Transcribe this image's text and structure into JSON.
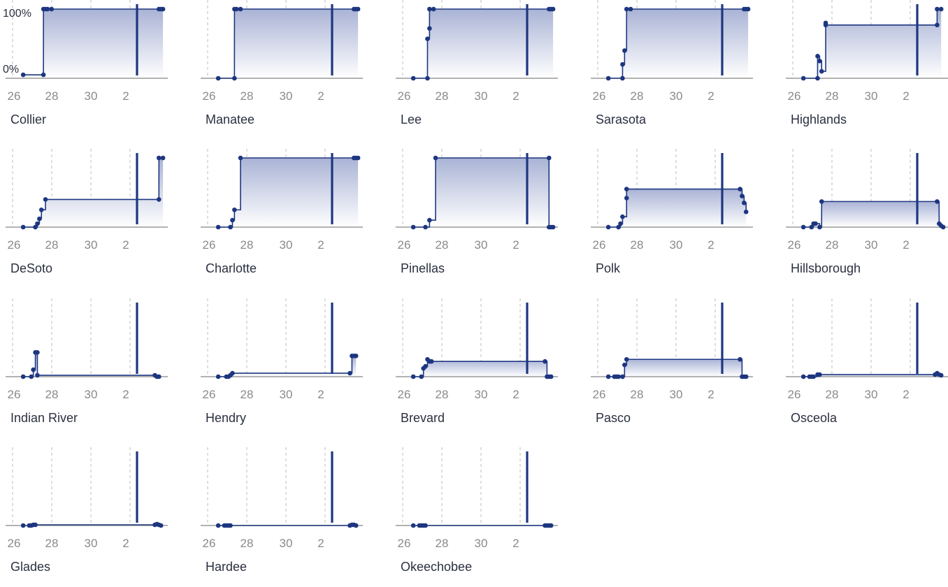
{
  "chart_data": {
    "type": "line",
    "shared": {
      "x_tick_labels": [
        "26",
        "28",
        "30",
        "2"
      ],
      "y_tick_labels": [
        "100%",
        "0%"
      ],
      "ylim": [
        0,
        100
      ],
      "x_grid": "dashed vertical",
      "marker_line": "solid vertical line near end of range"
    },
    "colors": {
      "line": "#1d3680",
      "fill_top": "#a9b3d5",
      "fill_bottom": "#ffffff",
      "axis": "#999999",
      "grid": "#c8c8c8",
      "tick_text": "#8a8a8a",
      "title_text": "#2b3040"
    },
    "panels": [
      {
        "title": "Collier",
        "points": [
          [
            25.8,
            5
          ],
          [
            26.8,
            5
          ],
          [
            26.8,
            100
          ],
          [
            26.9,
            100
          ],
          [
            27.0,
            100
          ],
          [
            27.2,
            100
          ],
          [
            32.5,
            100
          ],
          [
            32.6,
            100
          ],
          [
            32.7,
            100
          ]
        ]
      },
      {
        "title": "Manatee",
        "points": [
          [
            25.8,
            0
          ],
          [
            26.6,
            0
          ],
          [
            26.6,
            100
          ],
          [
            26.7,
            100
          ],
          [
            26.9,
            100
          ],
          [
            32.5,
            100
          ],
          [
            32.6,
            100
          ],
          [
            32.7,
            100
          ]
        ]
      },
      {
        "title": "Lee",
        "points": [
          [
            25.8,
            0
          ],
          [
            26.5,
            0
          ],
          [
            26.5,
            57
          ],
          [
            26.6,
            72
          ],
          [
            26.6,
            100
          ],
          [
            26.8,
            100
          ],
          [
            32.5,
            100
          ],
          [
            32.6,
            100
          ],
          [
            32.7,
            100
          ]
        ]
      },
      {
        "title": "Sarasota",
        "points": [
          [
            25.8,
            0
          ],
          [
            26.5,
            0
          ],
          [
            26.5,
            20
          ],
          [
            26.6,
            40
          ],
          [
            26.7,
            100
          ],
          [
            26.9,
            100
          ],
          [
            32.5,
            100
          ],
          [
            32.6,
            100
          ],
          [
            32.7,
            100
          ]
        ]
      },
      {
        "title": "Highlands",
        "points": [
          [
            25.8,
            0
          ],
          [
            26.5,
            0
          ],
          [
            26.5,
            32
          ],
          [
            26.6,
            25
          ],
          [
            26.7,
            10
          ],
          [
            26.9,
            80
          ],
          [
            26.9,
            77
          ],
          [
            32.4,
            77
          ],
          [
            32.4,
            100
          ],
          [
            32.6,
            100
          ]
        ]
      },
      {
        "title": "DeSoto",
        "points": [
          [
            25.8,
            0
          ],
          [
            26.4,
            0
          ],
          [
            26.5,
            5
          ],
          [
            26.6,
            12
          ],
          [
            26.7,
            25
          ],
          [
            26.9,
            40
          ],
          [
            32.5,
            40
          ],
          [
            32.5,
            100
          ],
          [
            32.7,
            100
          ]
        ]
      },
      {
        "title": "Charlotte",
        "points": [
          [
            25.8,
            0
          ],
          [
            26.4,
            0
          ],
          [
            26.5,
            10
          ],
          [
            26.6,
            25
          ],
          [
            26.9,
            100
          ],
          [
            32.5,
            100
          ],
          [
            32.6,
            100
          ],
          [
            32.7,
            100
          ]
        ]
      },
      {
        "title": "Pinellas",
        "points": [
          [
            25.8,
            0
          ],
          [
            26.4,
            0
          ],
          [
            26.6,
            10
          ],
          [
            26.9,
            100
          ],
          [
            32.5,
            100
          ],
          [
            32.5,
            0
          ],
          [
            32.6,
            0
          ],
          [
            32.7,
            0
          ]
        ]
      },
      {
        "title": "Polk",
        "points": [
          [
            25.8,
            0
          ],
          [
            26.3,
            0
          ],
          [
            26.4,
            5
          ],
          [
            26.5,
            15
          ],
          [
            26.7,
            42
          ],
          [
            26.7,
            55
          ],
          [
            32.3,
            55
          ],
          [
            32.4,
            45
          ],
          [
            32.5,
            35
          ],
          [
            32.6,
            22
          ]
        ]
      },
      {
        "title": "Hillsborough",
        "points": [
          [
            25.8,
            0
          ],
          [
            26.2,
            0
          ],
          [
            26.3,
            5
          ],
          [
            26.4,
            5
          ],
          [
            26.6,
            0
          ],
          [
            26.7,
            37
          ],
          [
            32.4,
            37
          ],
          [
            32.5,
            5
          ],
          [
            32.6,
            2
          ],
          [
            32.7,
            0
          ]
        ]
      },
      {
        "title": "Indian River",
        "points": [
          [
            25.8,
            0
          ],
          [
            26.2,
            0
          ],
          [
            26.3,
            10
          ],
          [
            26.4,
            35
          ],
          [
            26.5,
            35
          ],
          [
            26.5,
            2
          ],
          [
            32.3,
            2
          ],
          [
            32.4,
            0
          ],
          [
            32.5,
            0
          ]
        ]
      },
      {
        "title": "Hendry",
        "points": [
          [
            25.8,
            0
          ],
          [
            26.2,
            0
          ],
          [
            26.3,
            0
          ],
          [
            26.4,
            2
          ],
          [
            26.5,
            5
          ],
          [
            32.3,
            5
          ],
          [
            32.4,
            30
          ],
          [
            32.5,
            30
          ],
          [
            32.6,
            30
          ]
        ]
      },
      {
        "title": "Brevard",
        "points": [
          [
            25.8,
            0
          ],
          [
            26.2,
            0
          ],
          [
            26.3,
            12
          ],
          [
            26.4,
            15
          ],
          [
            26.5,
            25
          ],
          [
            26.6,
            22
          ],
          [
            26.7,
            22
          ],
          [
            32.3,
            22
          ],
          [
            32.4,
            0
          ],
          [
            32.5,
            0
          ],
          [
            32.6,
            0
          ]
        ]
      },
      {
        "title": "Pasco",
        "points": [
          [
            25.8,
            0
          ],
          [
            26.1,
            0
          ],
          [
            26.2,
            0
          ],
          [
            26.3,
            0
          ],
          [
            26.5,
            0
          ],
          [
            26.6,
            17
          ],
          [
            26.7,
            25
          ],
          [
            32.3,
            25
          ],
          [
            32.4,
            0
          ],
          [
            32.5,
            0
          ],
          [
            32.6,
            0
          ]
        ]
      },
      {
        "title": "Osceola",
        "points": [
          [
            25.8,
            0
          ],
          [
            26.1,
            0
          ],
          [
            26.2,
            0
          ],
          [
            26.3,
            0
          ],
          [
            26.5,
            3
          ],
          [
            26.6,
            3
          ],
          [
            32.3,
            3
          ],
          [
            32.4,
            5
          ],
          [
            32.5,
            3
          ],
          [
            32.6,
            2
          ]
        ]
      },
      {
        "title": "Glades",
        "points": [
          [
            25.8,
            0
          ],
          [
            26.1,
            0
          ],
          [
            26.2,
            0
          ],
          [
            26.3,
            1
          ],
          [
            26.4,
            1
          ],
          [
            32.3,
            1
          ],
          [
            32.4,
            2
          ],
          [
            32.5,
            1
          ],
          [
            32.6,
            0
          ]
        ]
      },
      {
        "title": "Hardee",
        "points": [
          [
            25.8,
            0
          ],
          [
            26.1,
            0
          ],
          [
            26.2,
            0
          ],
          [
            26.3,
            0
          ],
          [
            26.4,
            0
          ],
          [
            32.3,
            0
          ],
          [
            32.4,
            1
          ],
          [
            32.5,
            1
          ],
          [
            32.6,
            0
          ]
        ]
      },
      {
        "title": "Okeechobee",
        "points": [
          [
            25.8,
            0
          ],
          [
            26.1,
            0
          ],
          [
            26.2,
            0
          ],
          [
            26.3,
            0
          ],
          [
            26.4,
            0
          ],
          [
            32.3,
            0
          ],
          [
            32.4,
            0
          ],
          [
            32.5,
            0
          ],
          [
            32.6,
            0
          ]
        ]
      }
    ]
  }
}
